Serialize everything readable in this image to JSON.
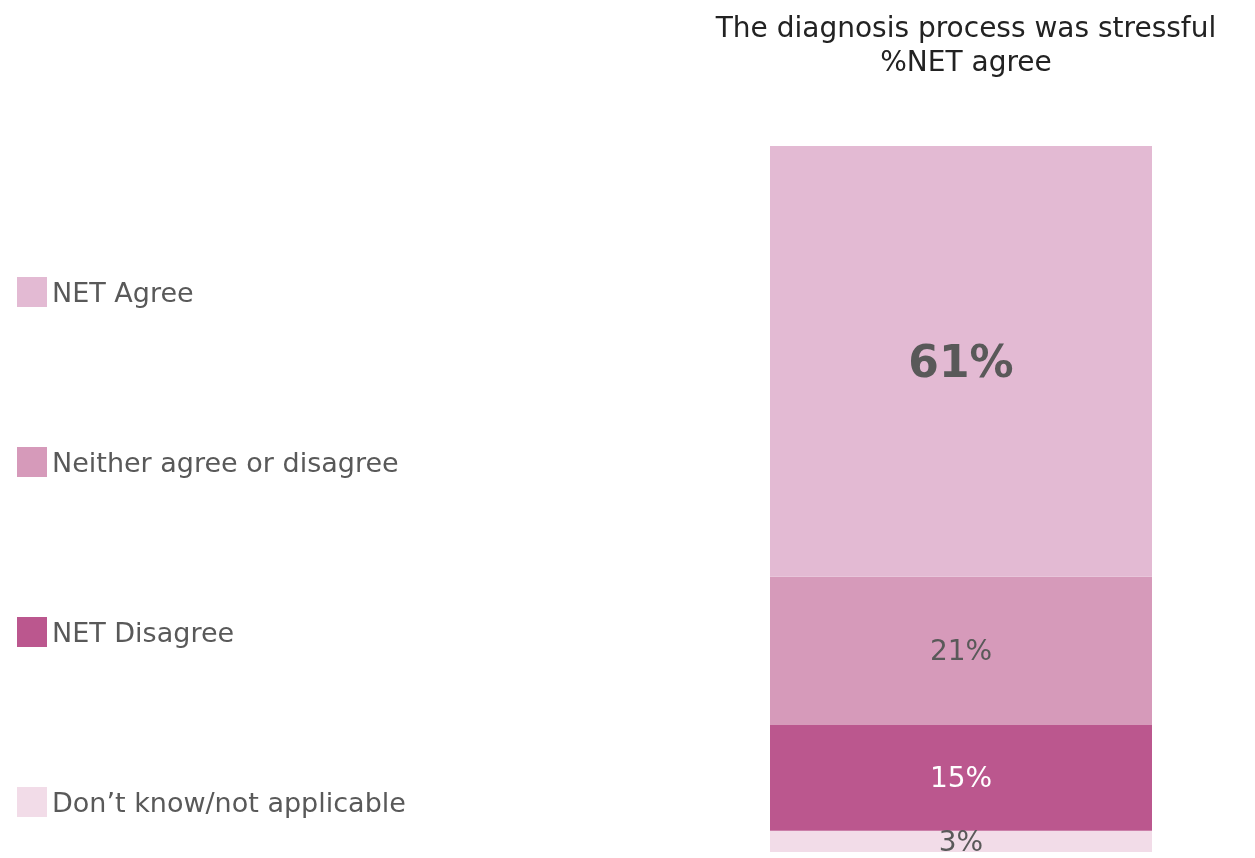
{
  "chart_data": {
    "type": "bar",
    "title": "The diagnosis process was stressful",
    "subtitle": "%NET agree",
    "categories": [
      null
    ],
    "stacked": true,
    "legend": "left",
    "series": [
      {
        "name": "Don’t know/not applicable",
        "color": "#f2dce8",
        "values": [
          3
        ],
        "value_labels": [
          "3%"
        ]
      },
      {
        "name": "NET Disagree",
        "color": "#bb578e",
        "values": [
          15
        ],
        "value_labels": [
          "15%"
        ]
      },
      {
        "name": "Neither agree or disagree",
        "color": "#d69aba",
        "values": [
          21
        ],
        "value_labels": [
          "21%"
        ]
      },
      {
        "name": "NET Agree",
        "color": "#e3bad3",
        "values": [
          61
        ],
        "value_labels": [
          "61%"
        ]
      }
    ]
  }
}
